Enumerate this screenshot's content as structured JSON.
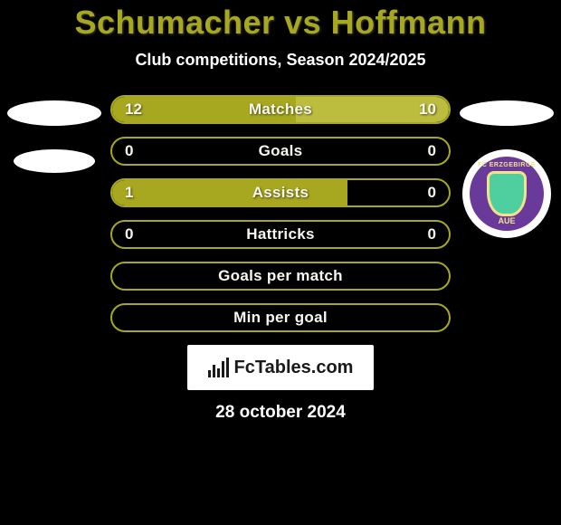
{
  "title": "Schumacher vs Hoffmann",
  "subtitle": "Club competitions, Season 2024/2025",
  "date_text": "28 october 2024",
  "brand_text": "FcTables.com",
  "colors": {
    "primary": "#a7a720",
    "primary_light": "#bcbc3e",
    "title_color": "#a7a720",
    "text_light": "#f7f7f0",
    "background": "#000000",
    "white": "#ffffff",
    "badge_purple": "#6a3a9a",
    "badge_yellow": "#f4e28a",
    "badge_green": "#4fcf9f"
  },
  "left_player_badges": {
    "has_club": false
  },
  "right_player_badges": {
    "has_club": true,
    "club_top_text": "FC ERZGEBIRGE",
    "club_bottom_text": "AUE"
  },
  "stats": [
    {
      "label": "Matches",
      "left_val": "12",
      "right_val": "10",
      "left_pct": 54.5,
      "right_pct": 45.5
    },
    {
      "label": "Goals",
      "left_val": "0",
      "right_val": "0",
      "left_pct": 0,
      "right_pct": 0
    },
    {
      "label": "Assists",
      "left_val": "1",
      "right_val": "0",
      "left_pct": 70,
      "right_pct": 0
    },
    {
      "label": "Hattricks",
      "left_val": "0",
      "right_val": "0",
      "left_pct": 0,
      "right_pct": 0
    },
    {
      "label": "Goals per match",
      "left_val": "",
      "right_val": "",
      "left_pct": 0,
      "right_pct": 0
    },
    {
      "label": "Min per goal",
      "left_val": "",
      "right_val": "",
      "left_pct": 0,
      "right_pct": 0
    }
  ],
  "bar_style": {
    "height": 32,
    "border_radius": 16,
    "border_color": "#a7a720",
    "fill_left": "#a7a720",
    "fill_right": "#bcbc3e",
    "label_fontsize": 17,
    "label_color": "#f7f7f0"
  }
}
